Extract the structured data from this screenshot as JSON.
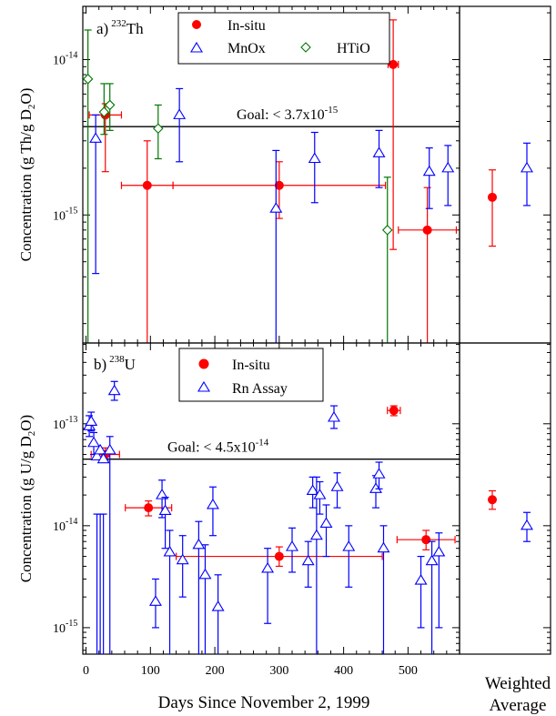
{
  "figure": {
    "xlabel": "Days Since November 2, 1999",
    "side_label": [
      "Weighted",
      "Average"
    ],
    "x_ticks": [
      0,
      100,
      200,
      300,
      400,
      500
    ]
  },
  "chart_data": [
    {
      "type": "scatter",
      "panel": "a",
      "title": {
        "label": "a)",
        "isotope_mass": "232",
        "element": "Th"
      },
      "ylabel": {
        "prefix": "Concentration (g Th/g D",
        "sub": "2",
        "suffix": "O)"
      },
      "y_scale": "log",
      "ylim": [
        1.5e-16,
        2.2e-14
      ],
      "xlim": [
        -5,
        580
      ],
      "y_tick_labels": [
        {
          "value": 1e-15,
          "base": "10",
          "exp": "-15"
        },
        {
          "value": 1e-14,
          "base": "10",
          "exp": "-14"
        }
      ],
      "goal": {
        "value": 3.7e-15,
        "label_prefix": "Goal: < 3.7x10",
        "label_exp": "-15"
      },
      "legend_position": "top-center",
      "series": [
        {
          "name": "In-situ",
          "marker": "filled-circle",
          "color": "#ff0000",
          "points": [
            {
              "x": 30,
              "y": 4.4e-15,
              "ylo": 1.9e-15,
              "yhi": 5.2e-15,
              "xerr": 25
            },
            {
              "x": 95,
              "y": 1.55e-15,
              "ylo": 1.3e-16,
              "yhi": 3e-15,
              "xerr": 40
            },
            {
              "x": 300,
              "y": 1.55e-15,
              "ylo": 9.5e-16,
              "yhi": 2.2e-15,
              "xerr": 165
            },
            {
              "x": 477,
              "y": 9.3e-15,
              "ylo": 6e-16,
              "yhi": 1.8e-14,
              "xerr": 8
            },
            {
              "x": 530,
              "y": 8e-16,
              "ylo": 1.5e-16,
              "yhi": 1.5e-15,
              "xerr": 45
            }
          ]
        },
        {
          "name": "MnOx",
          "marker": "open-triangle",
          "color": "#0000ff",
          "points": [
            {
              "x": 15,
              "y": 3.1e-15,
              "ylo": 4.2e-16,
              "yhi": 4.4e-15
            },
            {
              "x": 145,
              "y": 4.4e-15,
              "ylo": 2.2e-15,
              "yhi": 6.5e-15
            },
            {
              "x": 295,
              "y": 1.1e-15,
              "ylo": 1.5e-16,
              "yhi": 2.6e-15
            },
            {
              "x": 355,
              "y": 2.3e-15,
              "ylo": 1.2e-15,
              "yhi": 3.4e-15
            },
            {
              "x": 455,
              "y": 2.5e-15,
              "ylo": 1.5e-15,
              "yhi": 3.5e-15
            },
            {
              "x": 533,
              "y": 1.9e-15,
              "ylo": 1.1e-15,
              "yhi": 2.7e-15
            },
            {
              "x": 562,
              "y": 2e-15,
              "ylo": 1.15e-15,
              "yhi": 2.8e-15
            }
          ]
        },
        {
          "name": "HTiO",
          "marker": "open-diamond",
          "color": "#007700",
          "points": [
            {
              "x": 3,
              "y": 7.5e-15,
              "ylo": 1.5e-16,
              "yhi": 1.55e-14
            },
            {
              "x": 28,
              "y": 4.6e-15,
              "ylo": 3.3e-15,
              "yhi": 7e-15
            },
            {
              "x": 37,
              "y": 5.1e-15,
              "ylo": 3.5e-15,
              "yhi": 7e-15
            },
            {
              "x": 112,
              "y": 3.6e-15,
              "ylo": 2.3e-15,
              "yhi": 5.1e-15
            },
            {
              "x": 468,
              "y": 8e-16,
              "ylo": 1.5e-16,
              "yhi": 1.75e-15
            }
          ]
        }
      ],
      "weighted_average": [
        {
          "series": "In-situ",
          "y": 1.3e-15,
          "ylo": 6.3e-16,
          "yhi": 1.95e-15
        },
        {
          "series": "MnOx",
          "y": 2e-15,
          "ylo": 1.15e-15,
          "yhi": 2.9e-15
        }
      ]
    },
    {
      "type": "scatter",
      "panel": "b",
      "title": {
        "label": "b)",
        "isotope_mass": "238",
        "element": "U"
      },
      "ylabel": {
        "prefix": "Concentration (g U/g D",
        "sub": "2",
        "suffix": "O)"
      },
      "y_scale": "log",
      "ylim": [
        5.5e-16,
        6.2e-13
      ],
      "xlim": [
        -5,
        580
      ],
      "y_tick_labels": [
        {
          "value": 1e-15,
          "base": "10",
          "exp": "-15"
        },
        {
          "value": 1e-14,
          "base": "10",
          "exp": "-14"
        },
        {
          "value": 1e-13,
          "base": "10",
          "exp": "-13"
        }
      ],
      "goal": {
        "value": 4.5e-14,
        "label_prefix": "Goal: < 4.5x10",
        "label_exp": "-14"
      },
      "legend_position": "top-center",
      "series": [
        {
          "name": "In-situ",
          "marker": "filled-circle",
          "color": "#ff0000",
          "points": [
            {
              "x": 30,
              "y": 5e-14,
              "ylo": 4.3e-14,
              "yhi": 5.8e-14,
              "xerr": 22
            },
            {
              "x": 97,
              "y": 1.5e-14,
              "ylo": 1.25e-14,
              "yhi": 1.75e-14,
              "xerr": 36
            },
            {
              "x": 300,
              "y": 5e-15,
              "ylo": 4e-15,
              "yhi": 6.2e-15,
              "xerr": 160
            },
            {
              "x": 478,
              "y": 1.35e-13,
              "ylo": 1.2e-13,
              "yhi": 1.5e-13,
              "xerr": 10
            },
            {
              "x": 528,
              "y": 7.3e-15,
              "ylo": 5.8e-15,
              "yhi": 9e-15,
              "xerr": 45
            }
          ]
        },
        {
          "name": "Rn Assay",
          "marker": "open-triangle",
          "color": "#0000ff",
          "points": [
            {
              "x": 5,
              "y": 9.5e-14,
              "ylo": 7.5e-14,
              "yhi": 1.2e-13
            },
            {
              "x": 8,
              "y": 1.05e-13,
              "ylo": 8.5e-14,
              "yhi": 1.3e-13
            },
            {
              "x": 12,
              "y": 6.5e-14,
              "ylo": 5e-14,
              "yhi": 8.2e-14
            },
            {
              "x": 17,
              "y": 4.8e-14,
              "ylo": 5.5e-16,
              "yhi": 1.3e-14
            },
            {
              "x": 22,
              "y": 5.5e-14,
              "ylo": 5.5e-16,
              "yhi": 1.3e-14
            },
            {
              "x": 27,
              "y": 4.5e-14,
              "ylo": 5.5e-16,
              "yhi": 1.3e-14
            },
            {
              "x": 37,
              "y": 5.5e-14,
              "ylo": 5.5e-16,
              "yhi": 7.5e-14
            },
            {
              "x": 44,
              "y": 2.1e-13,
              "ylo": 1.7e-13,
              "yhi": 2.6e-13
            },
            {
              "x": 108,
              "y": 1.8e-15,
              "ylo": 1e-15,
              "yhi": 3e-15
            },
            {
              "x": 118,
              "y": 2e-14,
              "ylo": 1.2e-14,
              "yhi": 2.8e-14
            },
            {
              "x": 123,
              "y": 1.4e-14,
              "ylo": 6e-15,
              "yhi": 1.9e-14
            },
            {
              "x": 130,
              "y": 5.5e-15,
              "ylo": 5.5e-16,
              "yhi": 9e-15
            },
            {
              "x": 150,
              "y": 4.6e-15,
              "ylo": 2e-15,
              "yhi": 8e-15
            },
            {
              "x": 175,
              "y": 6.5e-15,
              "ylo": 5.5e-16,
              "yhi": 1.1e-14
            },
            {
              "x": 185,
              "y": 3.3e-15,
              "ylo": 5.5e-16,
              "yhi": 6.5e-15
            },
            {
              "x": 197,
              "y": 1.6e-14,
              "ylo": 8e-15,
              "yhi": 2.4e-14
            },
            {
              "x": 205,
              "y": 1.6e-15,
              "ylo": 5.5e-16,
              "yhi": 3.3e-15
            },
            {
              "x": 282,
              "y": 3.8e-15,
              "ylo": 1.1e-15,
              "yhi": 6e-15
            },
            {
              "x": 320,
              "y": 6.2e-15,
              "ylo": 3.5e-15,
              "yhi": 9.5e-15
            },
            {
              "x": 345,
              "y": 4.5e-15,
              "ylo": 2.5e-15,
              "yhi": 7e-15
            },
            {
              "x": 352,
              "y": 2.2e-14,
              "ylo": 1.5e-14,
              "yhi": 3e-14
            },
            {
              "x": 358,
              "y": 8e-15,
              "ylo": 5.5e-16,
              "yhi": 3e-14
            },
            {
              "x": 363,
              "y": 2e-14,
              "ylo": 1.3e-14,
              "yhi": 2.7e-14
            },
            {
              "x": 373,
              "y": 1.05e-14,
              "ylo": 5e-15,
              "yhi": 1.6e-14
            },
            {
              "x": 385,
              "y": 1.15e-13,
              "ylo": 9e-14,
              "yhi": 1.5e-13
            },
            {
              "x": 390,
              "y": 2.4e-14,
              "ylo": 1.5e-14,
              "yhi": 3.3e-14
            },
            {
              "x": 408,
              "y": 6.2e-15,
              "ylo": 2.5e-15,
              "yhi": 1e-14
            },
            {
              "x": 450,
              "y": 2.3e-14,
              "ylo": 1.5e-14,
              "yhi": 3.1e-14
            },
            {
              "x": 455,
              "y": 3.2e-14,
              "ylo": 2.3e-14,
              "yhi": 4.2e-14
            },
            {
              "x": 462,
              "y": 6e-15,
              "ylo": 5.5e-16,
              "yhi": 1e-14
            },
            {
              "x": 520,
              "y": 2.9e-15,
              "ylo": 1e-15,
              "yhi": 5e-15
            },
            {
              "x": 537,
              "y": 4.5e-15,
              "ylo": 5.5e-16,
              "yhi": 7e-15
            },
            {
              "x": 548,
              "y": 5.5e-15,
              "ylo": 1e-15,
              "yhi": 8.5e-15
            }
          ]
        }
      ],
      "weighted_average": [
        {
          "series": "In-situ",
          "y": 1.8e-14,
          "ylo": 1.45e-14,
          "yhi": 2.2e-14
        },
        {
          "series": "Rn Assay",
          "y": 1e-14,
          "ylo": 7e-15,
          "yhi": 1.35e-14
        }
      ]
    }
  ]
}
